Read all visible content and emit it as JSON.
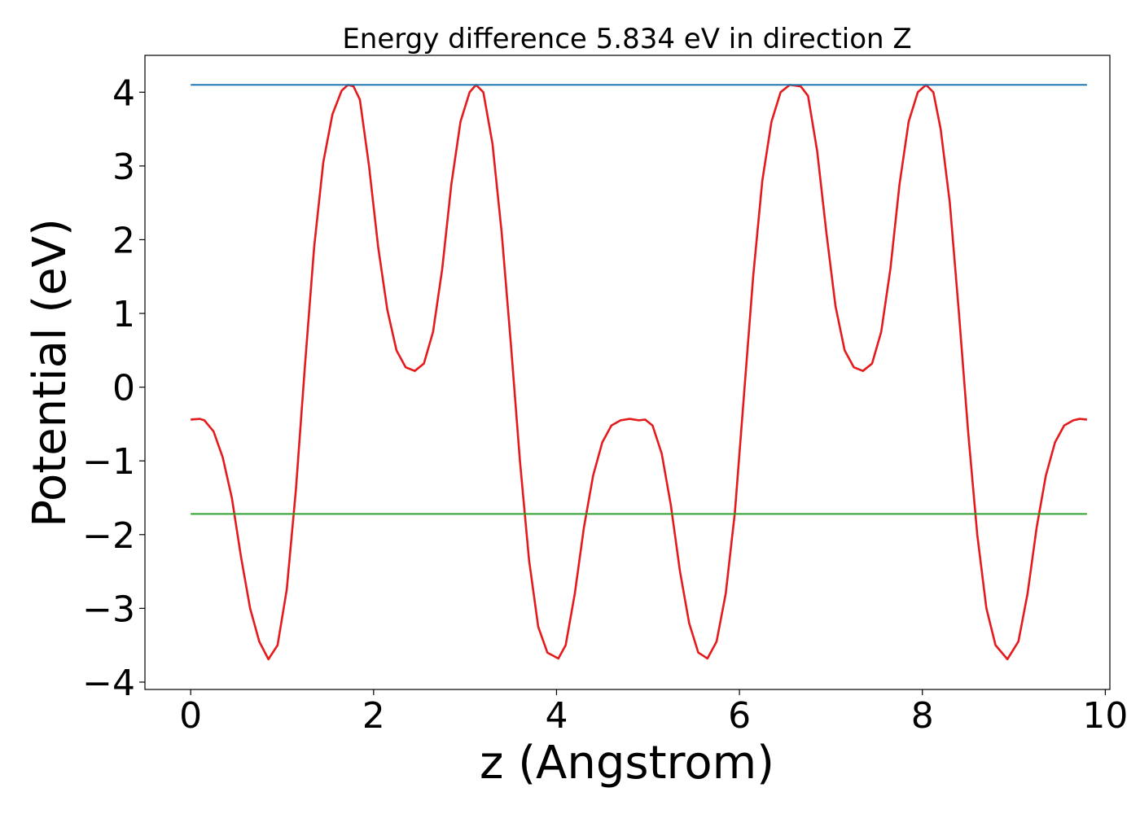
{
  "chart_data": {
    "type": "line",
    "title": "Energy difference 5.834 eV in direction Z",
    "xlabel": "z (Angstrom)",
    "ylabel": "Potential (eV)",
    "xlim": [
      -0.5,
      10.05
    ],
    "ylim": [
      -4.1,
      4.5
    ],
    "xticks": [
      0,
      2,
      4,
      6,
      8,
      10
    ],
    "yticks": [
      -4,
      -3,
      -2,
      -1,
      0,
      1,
      2,
      3,
      4
    ],
    "grid": false,
    "colors": {
      "potential": "#e41a1c",
      "vacuum": "#1f77b4",
      "fermi": "#2ca02c"
    },
    "series": [
      {
        "color_key": "potential",
        "x": [
          0.0,
          0.1,
          0.15,
          0.25,
          0.35,
          0.45,
          0.55,
          0.65,
          0.75,
          0.85,
          0.95,
          1.05,
          1.15,
          1.25,
          1.35,
          1.45,
          1.55,
          1.65,
          1.72,
          1.78,
          1.85,
          1.95,
          2.05,
          2.15,
          2.25,
          2.35,
          2.45,
          2.55,
          2.65,
          2.75,
          2.85,
          2.95,
          3.05,
          3.12,
          3.2,
          3.3,
          3.4,
          3.5,
          3.6,
          3.7,
          3.8,
          3.9,
          4.02,
          4.1,
          4.2,
          4.3,
          4.4,
          4.5,
          4.6,
          4.7,
          4.8,
          4.9,
          4.97,
          5.05,
          5.15,
          5.25,
          5.35,
          5.45,
          5.55,
          5.65,
          5.75,
          5.85,
          5.95,
          6.05,
          6.15,
          6.25,
          6.35,
          6.45,
          6.55,
          6.67,
          6.75,
          6.85,
          6.95,
          7.05,
          7.15,
          7.25,
          7.35,
          7.45,
          7.55,
          7.65,
          7.75,
          7.85,
          7.95,
          8.04,
          8.12,
          8.2,
          8.3,
          8.4,
          8.5,
          8.6,
          8.7,
          8.8,
          8.93,
          9.05,
          9.15,
          9.25,
          9.35,
          9.45,
          9.55,
          9.65,
          9.72,
          9.8
        ],
        "y": [
          -0.44,
          -0.43,
          -0.45,
          -0.6,
          -0.95,
          -1.5,
          -2.3,
          -3.0,
          -3.45,
          -3.69,
          -3.5,
          -2.75,
          -1.4,
          0.3,
          1.9,
          3.05,
          3.7,
          4.02,
          4.1,
          4.08,
          3.9,
          3.0,
          1.9,
          1.05,
          0.5,
          0.27,
          0.22,
          0.32,
          0.75,
          1.6,
          2.75,
          3.6,
          4.0,
          4.1,
          4.0,
          3.3,
          2.1,
          0.6,
          -1.0,
          -2.35,
          -3.25,
          -3.6,
          -3.68,
          -3.5,
          -2.8,
          -1.9,
          -1.2,
          -0.75,
          -0.52,
          -0.45,
          -0.43,
          -0.45,
          -0.44,
          -0.52,
          -0.9,
          -1.6,
          -2.5,
          -3.2,
          -3.6,
          -3.68,
          -3.45,
          -2.8,
          -1.7,
          -0.1,
          1.5,
          2.8,
          3.6,
          4.0,
          4.1,
          4.08,
          3.95,
          3.2,
          2.1,
          1.1,
          0.5,
          0.27,
          0.22,
          0.32,
          0.75,
          1.6,
          2.75,
          3.6,
          4.0,
          4.1,
          4.0,
          3.5,
          2.5,
          1.0,
          -0.6,
          -2.0,
          -3.0,
          -3.5,
          -3.69,
          -3.45,
          -2.8,
          -1.9,
          -1.2,
          -0.75,
          -0.52,
          -0.45,
          -0.43,
          -0.44
        ]
      },
      {
        "color_key": "vacuum",
        "x": [
          0.0,
          9.8
        ],
        "y": [
          4.1,
          4.1
        ]
      },
      {
        "color_key": "fermi",
        "x": [
          0.0,
          9.8
        ],
        "y": [
          -1.72,
          -1.72
        ]
      }
    ]
  }
}
